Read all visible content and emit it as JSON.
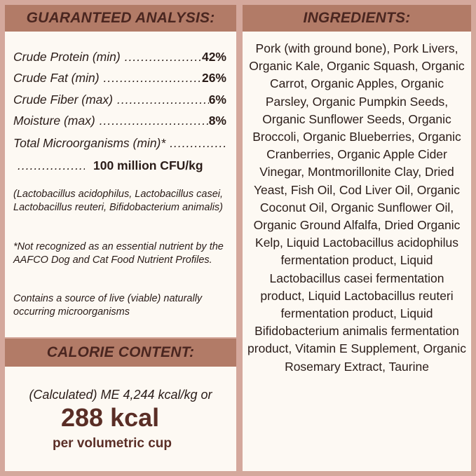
{
  "guaranteed_analysis": {
    "title": "GUARANTEED ANALYSIS:",
    "rows": [
      {
        "label": "Crude Protein (min)",
        "value": "42%"
      },
      {
        "label": "Crude Fat (min)",
        "value": "26%"
      },
      {
        "label": "Crude Fiber (max)",
        "value": "6%"
      },
      {
        "label": "Moisture (max)",
        "value": "8%"
      }
    ],
    "micro_label": "Total Microorganisms (min)*",
    "micro_value": "100 million CFU/kg",
    "notes": [
      "(Lactobacillus acidophilus, Lactobacillus casei, Lactobacillus reuteri, Bifidobacterium animalis)",
      "*Not recognized as an essential nutrient by the AAFCO Dog and Cat Food Nutrient Profiles.",
      "Contains a source of live (viable) naturally occurring microorganisms"
    ]
  },
  "calorie_content": {
    "title": "CALORIE CONTENT:",
    "line1": "(Calculated) ME 4,244 kcal/kg or",
    "big": "288 kcal",
    "line3": "per volumetric cup"
  },
  "ingredients": {
    "title": "INGREDIENTS:",
    "text": "Pork (with ground bone), Pork Livers, Organic Kale, Organic Squash, Organic Carrot, Organic Apples, Organic Parsley, Organic Pumpkin Seeds, Organic Sunflower Seeds, Organic Broccoli, Organic Blueberries, Organic Cranberries, Organic Apple Cider Vinegar, Montmorillonite Clay, Dried Yeast, Fish Oil, Cod Liver Oil, Organic Coconut Oil, Organic Sunflower Oil, Organic Ground Alfalfa, Dried Organic Kelp, Liquid Lactobacillus acidophilus fermentation product, Liquid Lactobacillus casei fermentation product, Liquid Lactobacillus reuteri fermentation product, Liquid Bifidobacterium animalis fermentation product, Vitamin E Supplement, Organic Rosemary Extract, Taurine"
  },
  "colors": {
    "border": "#d4a89c",
    "header_bar": "#b27b67",
    "header_text": "#4a2620",
    "panel": "#fdf9f3",
    "calorie_text": "#5a2e26"
  }
}
